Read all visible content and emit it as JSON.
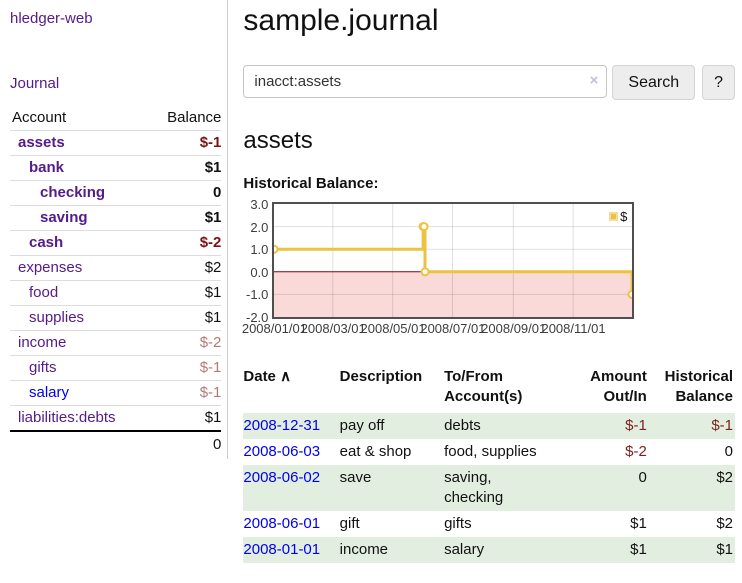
{
  "colors": {
    "link_purple": "#551a8b",
    "link_blue": "#0000ee",
    "negative_strong": "#7d1515",
    "negative_muted": "#b57878",
    "negative_table": "#7d1f1f",
    "row_green": "#e2efe0",
    "sidebar_border": "#cccccc"
  },
  "sidebar": {
    "app_title": "hledger-web",
    "nav": {
      "journal_label": "Journal"
    },
    "accounts_table": {
      "headers": {
        "account": "Account",
        "balance": "Balance"
      },
      "rows": [
        {
          "name": "assets",
          "indent": 1,
          "bold": true,
          "name_style": "purple",
          "balance": "$-1",
          "balance_style": "neg-strong"
        },
        {
          "name": "bank",
          "indent": 2,
          "bold": true,
          "name_style": "purple",
          "balance": "$1",
          "balance_style": "pos"
        },
        {
          "name": "checking",
          "indent": 3,
          "bold": true,
          "name_style": "purple",
          "balance": "0",
          "balance_style": "pos"
        },
        {
          "name": "saving",
          "indent": 3,
          "bold": true,
          "name_style": "purple",
          "balance": "$1",
          "balance_style": "pos"
        },
        {
          "name": "cash",
          "indent": 2,
          "bold": true,
          "name_style": "purple",
          "balance": "$-2",
          "balance_style": "neg-strong"
        },
        {
          "name": "expenses",
          "indent": 1,
          "bold": false,
          "name_style": "purple",
          "balance": "$2",
          "balance_style": "pos"
        },
        {
          "name": "food",
          "indent": 2,
          "bold": false,
          "name_style": "purple",
          "balance": "$1",
          "balance_style": "pos"
        },
        {
          "name": "supplies",
          "indent": 2,
          "bold": false,
          "name_style": "purple",
          "balance": "$1",
          "balance_style": "pos"
        },
        {
          "name": "income",
          "indent": 1,
          "bold": false,
          "name_style": "purple",
          "balance": "$-2",
          "balance_style": "neg-muted"
        },
        {
          "name": "gifts",
          "indent": 2,
          "bold": false,
          "name_style": "purple",
          "balance": "$-1",
          "balance_style": "neg-muted"
        },
        {
          "name": "salary",
          "indent": 2,
          "bold": false,
          "name_style": "blue",
          "balance": "$-1",
          "balance_style": "neg-muted"
        },
        {
          "name": "liabilities:debts",
          "indent": 1,
          "bold": false,
          "name_style": "purple",
          "balance": "$1",
          "balance_style": "pos"
        }
      ],
      "total": "0"
    }
  },
  "main": {
    "title": "sample.journal",
    "search": {
      "value": "inacct:assets",
      "clear_icon": "×",
      "search_button": "Search",
      "help_button": "?"
    },
    "account_heading": "assets",
    "chart_label": "Historical Balance:"
  },
  "chart_data": {
    "type": "line",
    "step": true,
    "title": "Historical Balance",
    "legend": [
      {
        "label": "$",
        "color": "#edc240"
      }
    ],
    "legend_position": "top-right",
    "grid": true,
    "x_range": [
      "2008-01-01",
      "2008-12-31"
    ],
    "ylim": [
      -2,
      3
    ],
    "colors": {
      "line": "#edc240",
      "marker_fill": "#ffffff",
      "zero_line": "#8b0000",
      "negative_region": "#fad9d9",
      "gridline": "rgba(0,0,0,0.12)"
    },
    "y_ticks": [
      {
        "label": "3.0",
        "value": 3
      },
      {
        "label": "2.0",
        "value": 2
      },
      {
        "label": "1.0",
        "value": 1
      },
      {
        "label": "0.0",
        "value": 0
      },
      {
        "label": "-1.0",
        "value": -1
      },
      {
        "label": "-2.0",
        "value": -2
      }
    ],
    "x_ticks": [
      {
        "label": "2008/01/01",
        "date": "2008-01-01"
      },
      {
        "label": "2008/03/01",
        "date": "2008-03-01"
      },
      {
        "label": "2008/05/01",
        "date": "2008-05-01"
      },
      {
        "label": "2008/07/01",
        "date": "2008-07-01"
      },
      {
        "label": "2008/09/01",
        "date": "2008-09-01"
      },
      {
        "label": "2008/11/01",
        "date": "2008-11-01"
      }
    ],
    "points": [
      {
        "date": "2008-01-01",
        "value": 1
      },
      {
        "date": "2008-06-01",
        "value": 2
      },
      {
        "date": "2008-06-02",
        "value": 2
      },
      {
        "date": "2008-06-03",
        "value": 0
      },
      {
        "date": "2008-12-31",
        "value": -1
      }
    ]
  },
  "transactions": {
    "headers": {
      "date": "Date",
      "sort_icon": "∧",
      "description": "Description",
      "accounts": "To/From\nAccount(s)",
      "amount": "Amount\nOut/In",
      "balance": "Historical\nBalance"
    },
    "rows": [
      {
        "date": "2008-12-31",
        "description": "pay off",
        "accounts": "debts",
        "amount": "$-1",
        "amount_neg": true,
        "balance": "$-1",
        "balance_neg": true
      },
      {
        "date": "2008-06-03",
        "description": "eat & shop",
        "accounts": "food, supplies",
        "amount": "$-2",
        "amount_neg": true,
        "balance": "0",
        "balance_neg": false
      },
      {
        "date": "2008-06-02",
        "description": "save",
        "accounts": "saving,\nchecking",
        "amount": "0",
        "amount_neg": false,
        "balance": "$2",
        "balance_neg": false
      },
      {
        "date": "2008-06-01",
        "description": "gift",
        "accounts": "gifts",
        "amount": "$1",
        "amount_neg": false,
        "balance": "$2",
        "balance_neg": false
      },
      {
        "date": "2008-01-01",
        "description": "income",
        "accounts": "salary",
        "amount": "$1",
        "amount_neg": false,
        "balance": "$1",
        "balance_neg": false
      }
    ]
  }
}
